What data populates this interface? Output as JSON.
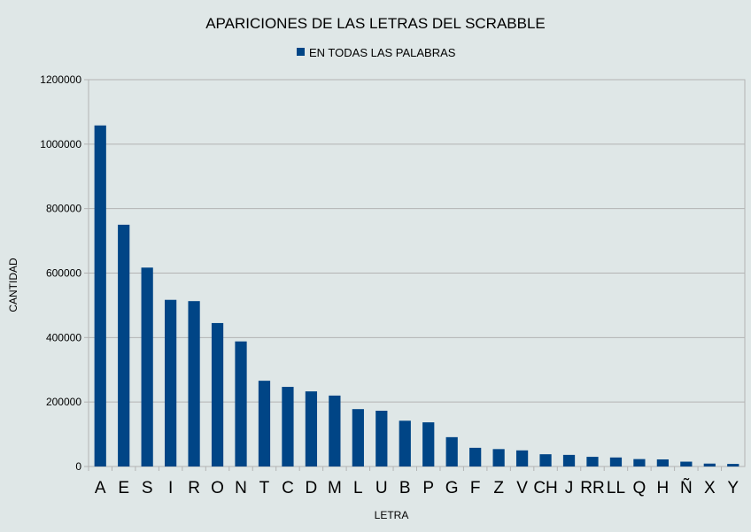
{
  "chart_data": {
    "type": "bar",
    "title": "APARICIONES DE LAS LETRAS DEL SCRABBLE",
    "xlabel": "LETRA",
    "ylabel": "CANTIDAD",
    "ylim": [
      0,
      1200000
    ],
    "yticks": [
      0,
      200000,
      400000,
      600000,
      800000,
      1000000,
      1200000
    ],
    "grid": true,
    "legend_position": "top-center",
    "bar_color": "#004586",
    "categories": [
      "A",
      "E",
      "S",
      "I",
      "R",
      "O",
      "N",
      "T",
      "C",
      "D",
      "M",
      "L",
      "U",
      "B",
      "P",
      "G",
      "F",
      "Z",
      "V",
      "CH",
      "J",
      "RR",
      "LL",
      "Q",
      "H",
      "Ñ",
      "X",
      "Y"
    ],
    "series": [
      {
        "name": "EN TODAS LAS PALABRAS",
        "values": [
          1058000,
          750000,
          617000,
          517000,
          513000,
          445000,
          388000,
          266000,
          247000,
          233000,
          220000,
          178000,
          173000,
          142000,
          137000,
          91000,
          58000,
          54000,
          50000,
          38000,
          36000,
          30000,
          28000,
          23000,
          22000,
          15000,
          9000,
          8000
        ]
      }
    ]
  }
}
